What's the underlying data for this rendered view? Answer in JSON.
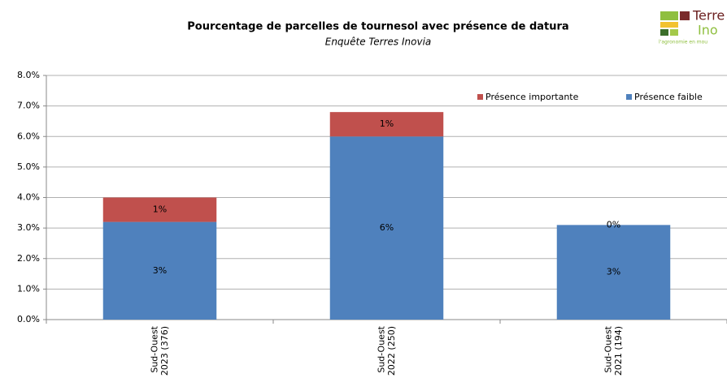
{
  "chart_data": {
    "type": "stacked_bar",
    "title": "Pourcentage de parcelles de tournesol avec présence de datura",
    "subtitle": "Enquête Terres Inovia",
    "logo": {
      "line1": "Terre",
      "line2": "Ino",
      "tagline": "l'agronomie en mou"
    },
    "categories": [
      "Sud-Ouest 2023 (376)",
      "Sud-Ouest 2022 (250)",
      "Sud-Ouest 2021 (194)"
    ],
    "series": [
      {
        "name": "Présence faible",
        "color": "#4f81bd",
        "values": [
          3.2,
          6.0,
          3.1
        ],
        "value_labels": [
          "3%",
          "6%",
          "3%"
        ]
      },
      {
        "name": "Présence importante",
        "color": "#c0504d",
        "values": [
          0.8,
          0.8,
          0.0
        ],
        "value_labels": [
          "1%",
          "1%",
          "0%"
        ]
      }
    ],
    "ylim": [
      0,
      8
    ],
    "yticks": [
      {
        "value": 0,
        "label": "0.0%"
      },
      {
        "value": 1,
        "label": "1.0%"
      },
      {
        "value": 2,
        "label": "2.0%"
      },
      {
        "value": 3,
        "label": "3.0%"
      },
      {
        "value": 4,
        "label": "4.0%"
      },
      {
        "value": 5,
        "label": "5.0%"
      },
      {
        "value": 6,
        "label": "6.0%"
      },
      {
        "value": 7,
        "label": "7.0%"
      },
      {
        "value": 8,
        "label": "8.0%"
      }
    ],
    "grid": true,
    "legend": "top-right"
  }
}
